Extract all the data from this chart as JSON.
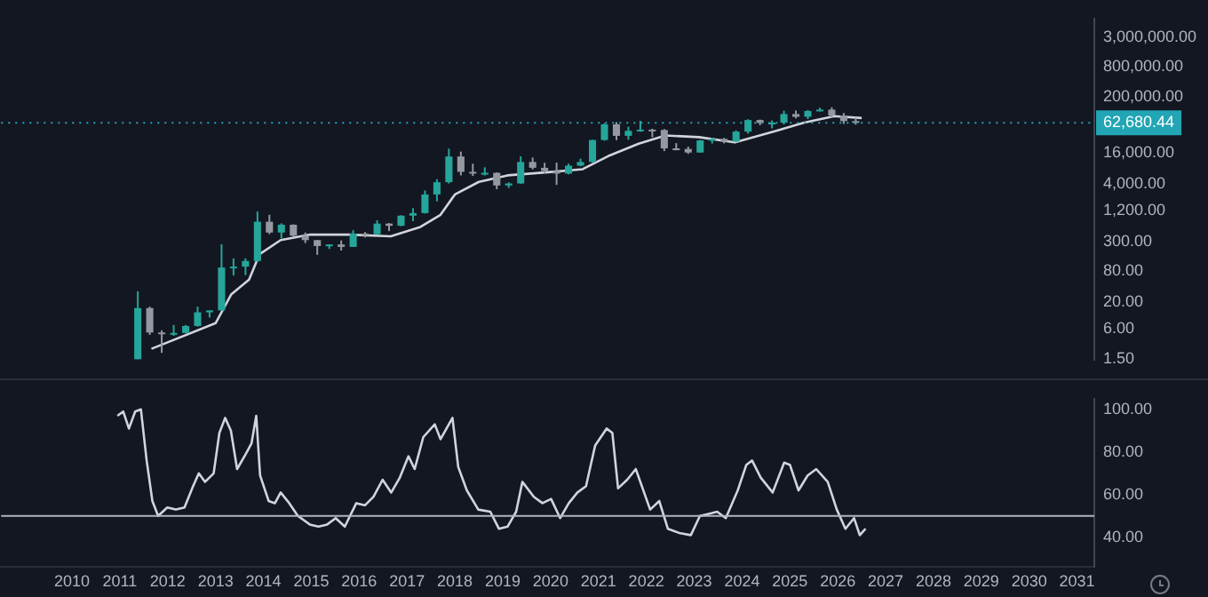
{
  "chart_data": [
    {
      "type": "candlestick",
      "x": [
        2011.375,
        2011.625,
        2011.875,
        2012.125,
        2012.375,
        2012.625,
        2012.875,
        2013.125,
        2013.375,
        2013.625,
        2013.875,
        2014.125,
        2014.375,
        2014.625,
        2014.875,
        2015.125,
        2015.375,
        2015.625,
        2015.875,
        2016.125,
        2016.375,
        2016.625,
        2016.875,
        2017.125,
        2017.375,
        2017.625,
        2017.875,
        2018.125,
        2018.375,
        2018.625,
        2018.875,
        2019.125,
        2019.375,
        2019.625,
        2019.875,
        2020.125,
        2020.375,
        2020.625,
        2020.875,
        2021.125,
        2021.375,
        2021.625,
        2021.875,
        2022.125,
        2022.375,
        2022.625,
        2022.875,
        2023.125,
        2023.375,
        2023.625,
        2023.875,
        2024.125,
        2024.375,
        2024.625,
        2024.875,
        2025.125,
        2025.375,
        2025.625,
        2025.875,
        2026.125,
        2026.375
      ],
      "ohlc": [
        [
          1.5,
          32,
          1.5,
          15
        ],
        [
          15,
          16,
          4.5,
          5
        ],
        [
          5,
          5.5,
          2,
          4.7
        ],
        [
          4.7,
          7,
          4.3,
          4.9
        ],
        [
          4.9,
          7,
          4.8,
          6.7
        ],
        [
          6.7,
          16,
          6.5,
          12.4
        ],
        [
          12.4,
          13.5,
          9.8,
          13.5
        ],
        [
          13.5,
          266,
          13.3,
          93
        ],
        [
          93,
          140,
          65,
          97
        ],
        [
          97,
          141,
          66,
          125
        ],
        [
          125,
          1160,
          120,
          732
        ],
        [
          732,
          1000,
          420,
          450
        ],
        [
          450,
          680,
          345,
          640
        ],
        [
          640,
          650,
          380,
          390
        ],
        [
          390,
          450,
          280,
          320
        ],
        [
          320,
          320,
          165,
          245
        ],
        [
          245,
          265,
          215,
          263
        ],
        [
          263,
          315,
          200,
          236
        ],
        [
          236,
          500,
          235,
          430
        ],
        [
          430,
          460,
          360,
          416
        ],
        [
          416,
          780,
          410,
          673
        ],
        [
          673,
          690,
          480,
          610
        ],
        [
          610,
          980,
          600,
          963
        ],
        [
          963,
          1350,
          750,
          1080
        ],
        [
          1080,
          3000,
          1060,
          2500
        ],
        [
          2500,
          4980,
          1830,
          4340
        ],
        [
          4340,
          19700,
          4100,
          13800
        ],
        [
          13800,
          17200,
          5900,
          6920
        ],
        [
          6920,
          9990,
          5750,
          6390
        ],
        [
          6390,
          8500,
          5880,
          6620
        ],
        [
          6620,
          6750,
          3150,
          3740
        ],
        [
          3740,
          4300,
          3350,
          4100
        ],
        [
          4100,
          13900,
          4050,
          10800
        ],
        [
          10800,
          13200,
          7700,
          8300
        ],
        [
          8300,
          10400,
          6500,
          7200
        ],
        [
          7200,
          10500,
          3850,
          6400
        ],
        [
          6400,
          10000,
          6150,
          9140
        ],
        [
          9140,
          12500,
          8900,
          10780
        ],
        [
          10780,
          29300,
          10400,
          29000
        ],
        [
          29000,
          61800,
          28100,
          58800
        ],
        [
          58800,
          64900,
          28800,
          35000
        ],
        [
          35000,
          52900,
          29300,
          43800
        ],
        [
          43800,
          69000,
          42000,
          46300
        ],
        [
          46300,
          48200,
          32900,
          45500
        ],
        [
          45500,
          47400,
          17600,
          19900
        ],
        [
          19900,
          25200,
          18200,
          19400
        ],
        [
          19400,
          21500,
          15500,
          16500
        ],
        [
          16500,
          29200,
          16500,
          28500
        ],
        [
          28500,
          31800,
          24800,
          30500
        ],
        [
          30500,
          31800,
          24900,
          27000
        ],
        [
          27000,
          44700,
          26500,
          42300
        ],
        [
          42300,
          73800,
          38500,
          71300
        ],
        [
          71300,
          72800,
          56500,
          62700
        ],
        [
          62700,
          70000,
          49000,
          63300
        ],
        [
          63300,
          108300,
          58900,
          93400
        ],
        [
          93400,
          109600,
          76600,
          82500
        ],
        [
          82500,
          111900,
          74400,
          107100
        ],
        [
          107100,
          124100,
          105300,
          114000
        ],
        [
          114000,
          126200,
          80500,
          87500
        ],
        [
          87500,
          97900,
          60000,
          68000
        ],
        [
          68000,
          80000,
          58000,
          62680.44
        ]
      ],
      "colors": [
        "#26a69a",
        "#9598a1",
        "#9598a1",
        "#26a69a",
        "#26a69a",
        "#26a69a",
        "#26a69a",
        "#26a69a",
        "#26a69a",
        "#26a69a",
        "#26a69a",
        "#9598a1",
        "#26a69a",
        "#9598a1",
        "#9598a1",
        "#9598a1",
        "#26a69a",
        "#9598a1",
        "#26a69a",
        "#9598a1",
        "#26a69a",
        "#9598a1",
        "#26a69a",
        "#26a69a",
        "#26a69a",
        "#26a69a",
        "#26a69a",
        "#9598a1",
        "#9598a1",
        "#26a69a",
        "#9598a1",
        "#26a69a",
        "#26a69a",
        "#9598a1",
        "#9598a1",
        "#9598a1",
        "#26a69a",
        "#26a69a",
        "#26a69a",
        "#26a69a",
        "#9598a1",
        "#26a69a",
        "#26a69a",
        "#9598a1",
        "#9598a1",
        "#9598a1",
        "#9598a1",
        "#26a69a",
        "#26a69a",
        "#9598a1",
        "#26a69a",
        "#26a69a",
        "#9598a1",
        "#26a69a",
        "#26a69a",
        "#9598a1",
        "#26a69a",
        "#26a69a",
        "#9598a1",
        "#9598a1",
        "#9598a1"
      ],
      "series": [
        {
          "type": "line",
          "color": "#d1d4dc",
          "x": [
            2011.66,
            2013.0,
            2013.33,
            2013.7,
            2013.92,
            2014.36,
            2014.98,
            2015.8,
            2016.66,
            2017.28,
            2017.7,
            2018.0,
            2018.5,
            2019.1,
            2019.94,
            2020.67,
            2021.2,
            2021.84,
            2022.4,
            2023.1,
            2023.85,
            2024.7,
            2025.3,
            2025.93,
            2026.5
          ],
          "values": [
            2.4,
            7.6,
            28,
            54,
            170,
            320,
            410,
            410,
            380,
            580,
            1000,
            2500,
            4400,
            5900,
            6800,
            7800,
            14000,
            24500,
            35500,
            33000,
            26000,
            43500,
            63500,
            85000,
            78000
          ]
        }
      ],
      "log": true,
      "ylim": [
        1.45,
        6900000
      ],
      "yticks": [
        {
          "value": 1.5,
          "label": "1.50"
        },
        {
          "value": 6,
          "label": "6.00"
        },
        {
          "value": 20,
          "label": "20.00"
        },
        {
          "value": 80,
          "label": "80.00"
        },
        {
          "value": 300,
          "label": "300.00"
        },
        {
          "value": 1200,
          "label": "1,200.00"
        },
        {
          "value": 4000,
          "label": "4,000.00"
        },
        {
          "value": 16000,
          "label": "16,000.00"
        },
        {
          "value": 200000,
          "label": "200,000.00"
        },
        {
          "value": 800000,
          "label": "800,000.00"
        },
        {
          "value": 3000000,
          "label": "3,000,000.00"
        }
      ],
      "xlim": [
        2008.52,
        2031.36
      ],
      "tick_labels": "y",
      "ref_lines": [
        {
          "axis": "y",
          "value": 62680.44,
          "label": "62,680.44",
          "color": "#22a5b4",
          "line_style": "dotted"
        }
      ]
    },
    {
      "type": "line",
      "color": "#d1d4dc",
      "x": [
        2010.95,
        2011.07,
        2011.19,
        2011.32,
        2011.44,
        2011.56,
        2011.68,
        2011.8,
        2011.99,
        2012.17,
        2012.35,
        2012.53,
        2012.65,
        2012.78,
        2012.96,
        2013.08,
        2013.2,
        2013.32,
        2013.45,
        2013.63,
        2013.75,
        2013.85,
        2013.93,
        2014.11,
        2014.24,
        2014.36,
        2014.54,
        2014.72,
        2014.97,
        2015.15,
        2015.33,
        2015.51,
        2015.7,
        2015.94,
        2016.12,
        2016.3,
        2016.49,
        2016.67,
        2016.85,
        2017.03,
        2017.16,
        2017.34,
        2017.58,
        2017.7,
        2017.95,
        2018.07,
        2018.25,
        2018.49,
        2018.74,
        2018.92,
        2019.1,
        2019.28,
        2019.41,
        2019.65,
        2019.83,
        2020.01,
        2020.2,
        2020.38,
        2020.56,
        2020.74,
        2020.93,
        2021.17,
        2021.29,
        2021.41,
        2021.6,
        2021.78,
        2022.08,
        2022.27,
        2022.45,
        2022.69,
        2022.93,
        2023.12,
        2023.3,
        2023.48,
        2023.66,
        2023.91,
        2024.09,
        2024.21,
        2024.39,
        2024.64,
        2024.88,
        2025.0,
        2025.18,
        2025.37,
        2025.55,
        2025.79,
        2025.98,
        2026.16,
        2026.34,
        2026.46,
        2026.58
      ],
      "values": [
        97,
        99,
        91,
        99,
        100,
        76,
        57,
        50,
        54,
        53,
        54,
        64,
        70,
        66,
        70,
        89,
        96,
        90,
        72,
        79,
        84,
        97,
        69,
        57,
        56,
        61,
        56,
        50,
        46,
        45,
        46,
        49,
        45,
        56,
        55,
        59,
        67,
        61,
        68,
        78,
        72,
        87,
        93,
        86,
        96,
        73,
        62,
        53,
        52,
        44,
        45,
        52,
        66,
        59,
        56,
        58,
        49,
        56,
        61,
        64,
        83,
        91,
        89,
        63,
        67,
        72,
        53,
        57,
        44,
        42,
        41,
        50,
        51,
        52,
        49,
        62,
        74,
        76,
        68,
        61,
        75,
        74,
        62,
        69,
        72,
        66,
        53,
        44,
        49,
        41,
        44
      ],
      "ylim": [
        26,
        105
      ],
      "yticks": [
        {
          "value": 40,
          "label": "40.00"
        },
        {
          "value": 60,
          "label": "60.00"
        },
        {
          "value": 80,
          "label": "80.00"
        },
        {
          "value": 100,
          "label": "100.00"
        }
      ],
      "xlim": [
        2008.52,
        2031.36
      ],
      "xticks": [
        2010,
        2011,
        2012,
        2013,
        2014,
        2015,
        2016,
        2017,
        2018,
        2019,
        2020,
        2021,
        2022,
        2023,
        2024,
        2025,
        2026,
        2027,
        2028,
        2029,
        2030,
        2031
      ],
      "ref_lines": [
        {
          "axis": "y",
          "value": 50,
          "color": "#b2b5be",
          "line_style": "solid"
        }
      ]
    }
  ]
}
